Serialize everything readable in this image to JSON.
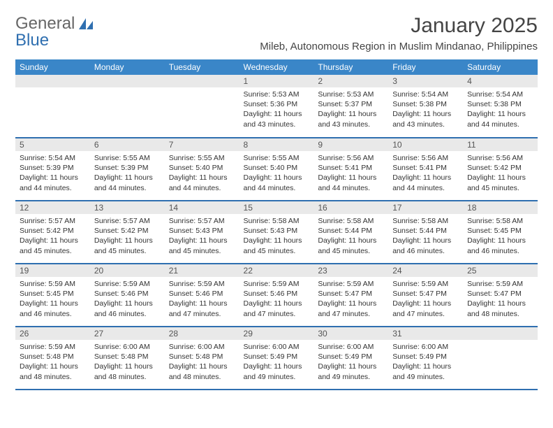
{
  "brand": {
    "part1": "General",
    "part2": "Blue"
  },
  "title": "January 2025",
  "location": "Mileb, Autonomous Region in Muslim Mindanao, Philippines",
  "colors": {
    "header_bg": "#3a86c8",
    "header_text": "#ffffff",
    "daynum_bg": "#e9e9e9",
    "row_border": "#2f6fb0",
    "body_text": "#333333",
    "title_text": "#444444",
    "logo_gray": "#666666",
    "logo_blue": "#2f6fb0",
    "page_bg": "#ffffff"
  },
  "typography": {
    "title_fontsize": 30,
    "location_fontsize": 15,
    "dayhdr_fontsize": 12,
    "daynum_fontsize": 12,
    "body_fontsize": 10.5
  },
  "calendar": {
    "type": "table",
    "columns": [
      "Sunday",
      "Monday",
      "Tuesday",
      "Wednesday",
      "Thursday",
      "Friday",
      "Saturday"
    ],
    "num_weeks": 5,
    "start_day_index": 3,
    "days": [
      {
        "n": "1",
        "sunrise": "5:53 AM",
        "sunset": "5:36 PM",
        "daylight": "11 hours and 43 minutes."
      },
      {
        "n": "2",
        "sunrise": "5:53 AM",
        "sunset": "5:37 PM",
        "daylight": "11 hours and 43 minutes."
      },
      {
        "n": "3",
        "sunrise": "5:54 AM",
        "sunset": "5:38 PM",
        "daylight": "11 hours and 43 minutes."
      },
      {
        "n": "4",
        "sunrise": "5:54 AM",
        "sunset": "5:38 PM",
        "daylight": "11 hours and 44 minutes."
      },
      {
        "n": "5",
        "sunrise": "5:54 AM",
        "sunset": "5:39 PM",
        "daylight": "11 hours and 44 minutes."
      },
      {
        "n": "6",
        "sunrise": "5:55 AM",
        "sunset": "5:39 PM",
        "daylight": "11 hours and 44 minutes."
      },
      {
        "n": "7",
        "sunrise": "5:55 AM",
        "sunset": "5:40 PM",
        "daylight": "11 hours and 44 minutes."
      },
      {
        "n": "8",
        "sunrise": "5:55 AM",
        "sunset": "5:40 PM",
        "daylight": "11 hours and 44 minutes."
      },
      {
        "n": "9",
        "sunrise": "5:56 AM",
        "sunset": "5:41 PM",
        "daylight": "11 hours and 44 minutes."
      },
      {
        "n": "10",
        "sunrise": "5:56 AM",
        "sunset": "5:41 PM",
        "daylight": "11 hours and 44 minutes."
      },
      {
        "n": "11",
        "sunrise": "5:56 AM",
        "sunset": "5:42 PM",
        "daylight": "11 hours and 45 minutes."
      },
      {
        "n": "12",
        "sunrise": "5:57 AM",
        "sunset": "5:42 PM",
        "daylight": "11 hours and 45 minutes."
      },
      {
        "n": "13",
        "sunrise": "5:57 AM",
        "sunset": "5:42 PM",
        "daylight": "11 hours and 45 minutes."
      },
      {
        "n": "14",
        "sunrise": "5:57 AM",
        "sunset": "5:43 PM",
        "daylight": "11 hours and 45 minutes."
      },
      {
        "n": "15",
        "sunrise": "5:58 AM",
        "sunset": "5:43 PM",
        "daylight": "11 hours and 45 minutes."
      },
      {
        "n": "16",
        "sunrise": "5:58 AM",
        "sunset": "5:44 PM",
        "daylight": "11 hours and 45 minutes."
      },
      {
        "n": "17",
        "sunrise": "5:58 AM",
        "sunset": "5:44 PM",
        "daylight": "11 hours and 46 minutes."
      },
      {
        "n": "18",
        "sunrise": "5:58 AM",
        "sunset": "5:45 PM",
        "daylight": "11 hours and 46 minutes."
      },
      {
        "n": "19",
        "sunrise": "5:59 AM",
        "sunset": "5:45 PM",
        "daylight": "11 hours and 46 minutes."
      },
      {
        "n": "20",
        "sunrise": "5:59 AM",
        "sunset": "5:46 PM",
        "daylight": "11 hours and 46 minutes."
      },
      {
        "n": "21",
        "sunrise": "5:59 AM",
        "sunset": "5:46 PM",
        "daylight": "11 hours and 47 minutes."
      },
      {
        "n": "22",
        "sunrise": "5:59 AM",
        "sunset": "5:46 PM",
        "daylight": "11 hours and 47 minutes."
      },
      {
        "n": "23",
        "sunrise": "5:59 AM",
        "sunset": "5:47 PM",
        "daylight": "11 hours and 47 minutes."
      },
      {
        "n": "24",
        "sunrise": "5:59 AM",
        "sunset": "5:47 PM",
        "daylight": "11 hours and 47 minutes."
      },
      {
        "n": "25",
        "sunrise": "5:59 AM",
        "sunset": "5:47 PM",
        "daylight": "11 hours and 48 minutes."
      },
      {
        "n": "26",
        "sunrise": "5:59 AM",
        "sunset": "5:48 PM",
        "daylight": "11 hours and 48 minutes."
      },
      {
        "n": "27",
        "sunrise": "6:00 AM",
        "sunset": "5:48 PM",
        "daylight": "11 hours and 48 minutes."
      },
      {
        "n": "28",
        "sunrise": "6:00 AM",
        "sunset": "5:48 PM",
        "daylight": "11 hours and 48 minutes."
      },
      {
        "n": "29",
        "sunrise": "6:00 AM",
        "sunset": "5:49 PM",
        "daylight": "11 hours and 49 minutes."
      },
      {
        "n": "30",
        "sunrise": "6:00 AM",
        "sunset": "5:49 PM",
        "daylight": "11 hours and 49 minutes."
      },
      {
        "n": "31",
        "sunrise": "6:00 AM",
        "sunset": "5:49 PM",
        "daylight": "11 hours and 49 minutes."
      }
    ],
    "labels": {
      "sunrise_prefix": "Sunrise: ",
      "sunset_prefix": "Sunset: ",
      "daylight_prefix": "Daylight: "
    }
  }
}
